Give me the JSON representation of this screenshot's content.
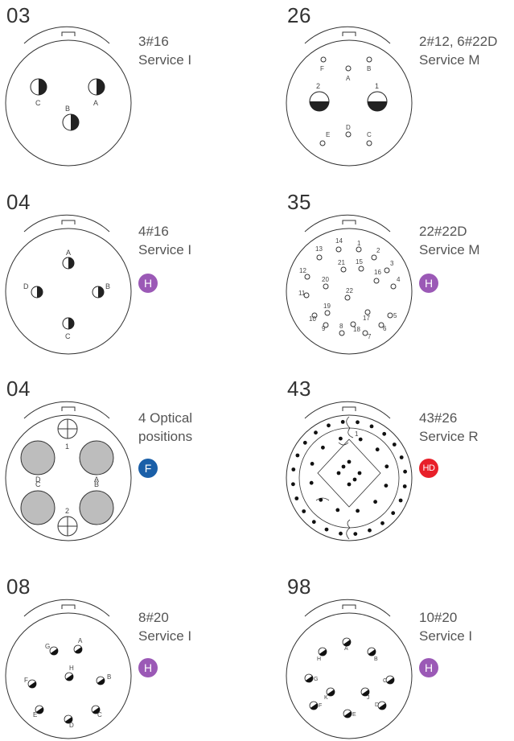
{
  "connectors": [
    {
      "code": "03",
      "line1": "3#16",
      "line2": "Service I",
      "badge": "",
      "badge_color": ""
    },
    {
      "code": "26",
      "line1": "2#12, 6#22D",
      "line2": "Service M",
      "badge": "",
      "badge_color": ""
    },
    {
      "code": "04",
      "line1": "4#16",
      "line2": "Service I",
      "badge": "H",
      "badge_color": "#9b59b6"
    },
    {
      "code": "35",
      "line1": "22#22D",
      "line2": "Service M",
      "badge": "H",
      "badge_color": "#9b59b6"
    },
    {
      "code": "04",
      "line1": "4 Optical",
      "line2": "positions",
      "badge": "F",
      "badge_color": "#1a5fa8"
    },
    {
      "code": "43",
      "line1": "43#26",
      "line2": "Service R",
      "badge": "HD",
      "badge_color": "#e8202a"
    },
    {
      "code": "08",
      "line1": "8#20",
      "line2": "Service I",
      "badge": "H",
      "badge_color": "#9b59b6"
    },
    {
      "code": "98",
      "line1": "10#20",
      "line2": "Service I",
      "badge": "H",
      "badge_color": "#9b59b6"
    }
  ],
  "contacts": {
    "c03": [
      "C",
      "B",
      "A"
    ],
    "c26": [
      "F",
      "A",
      "B",
      "2",
      "1",
      "E",
      "D",
      "C"
    ],
    "c04": [
      "A",
      "D",
      "B",
      "C"
    ],
    "c35": [
      "1",
      "2",
      "3",
      "4",
      "5",
      "6",
      "7",
      "8",
      "9",
      "10",
      "11",
      "12",
      "13",
      "14",
      "15",
      "16",
      "17",
      "18",
      "19",
      "20",
      "21",
      "22"
    ],
    "c04f": [
      "1",
      "D",
      "A",
      "C",
      "B",
      "2"
    ],
    "c43": [
      "1"
    ],
    "c08": [
      "A",
      "B",
      "C",
      "D",
      "E",
      "F",
      "G",
      "H"
    ],
    "c98": [
      "A",
      "B",
      "C",
      "D",
      "E",
      "F",
      "G",
      "H",
      "J",
      "K"
    ]
  }
}
